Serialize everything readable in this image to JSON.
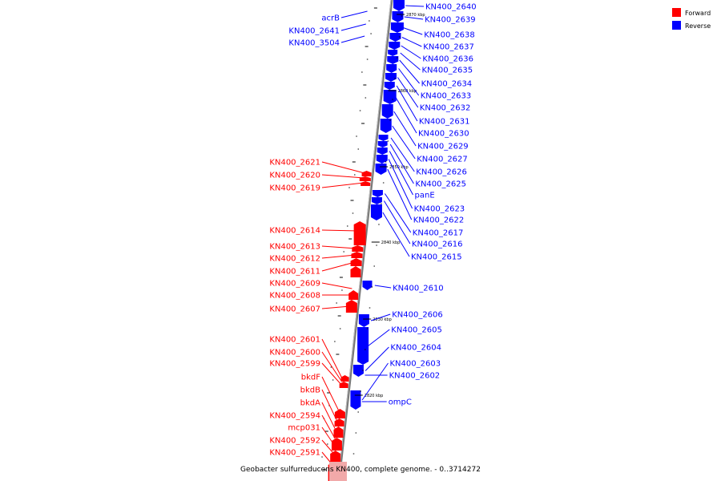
{
  "title": "Geobacter sulfurreducens KN400, complete genome. - 0..3714272",
  "colors": {
    "forward": "#ff0000",
    "reverse": "#0000ff",
    "backbone": "#888888",
    "tick": "#000000"
  },
  "legend": [
    {
      "label": "Forward",
      "strand": "forward"
    },
    {
      "label": "Reverse",
      "strand": "reverse"
    }
  ],
  "scale_labels": [
    "2870 kbp",
    "2860 kbp",
    "2850 kbp",
    "2840 kbp",
    "2830 kbp",
    "2820 kbp"
  ],
  "reverse_labels": [
    "KN400_2640",
    "KN400_2639",
    "KN400_2638",
    "KN400_2637",
    "KN400_2636",
    "KN400_2635",
    "KN400_2634",
    "KN400_2633",
    "KN400_2632",
    "KN400_2631",
    "KN400_2630",
    "KN400_2629",
    "KN400_2627",
    "KN400_2626",
    "KN400_2625",
    "panE",
    "KN400_2623",
    "KN400_2622",
    "KN400_2617",
    "KN400_2616",
    "KN400_2615",
    "KN400_2610",
    "KN400_2606",
    "KN400_2605",
    "KN400_2604",
    "KN400_2603",
    "KN400_2602",
    "ompC"
  ],
  "reverse_left_labels": [
    "acrB",
    "KN400_2641",
    "KN400_3504"
  ],
  "forward_labels": [
    "KN400_2621",
    "KN400_2620",
    "KN400_2619",
    "KN400_2614",
    "KN400_2613",
    "KN400_2612",
    "KN400_2611",
    "KN400_2609",
    "KN400_2608",
    "KN400_2607",
    "KN400_2601",
    "KN400_2600",
    "KN400_2599",
    "bkdF",
    "bkdB",
    "bkdA",
    "KN400_2594",
    "mcp031",
    "KN400_2592",
    "KN400_2591"
  ]
}
